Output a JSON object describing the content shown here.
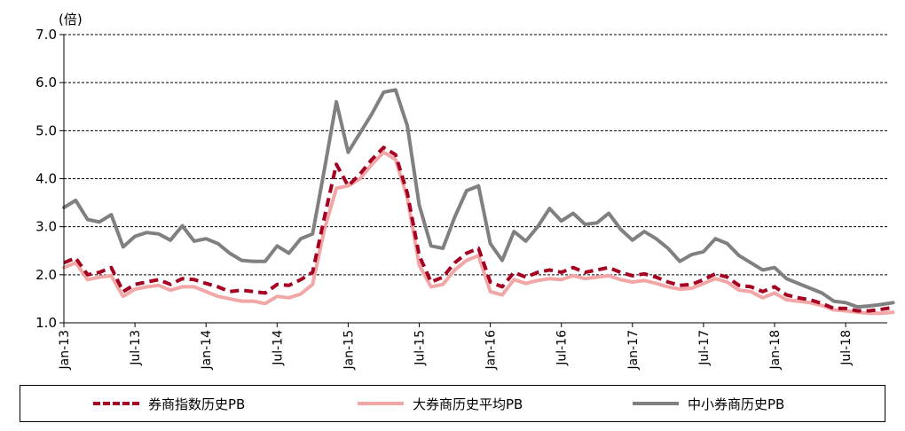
{
  "chart_data": {
    "type": "line",
    "unit_label": "(倍)",
    "ylim": [
      1.0,
      7.0
    ],
    "y_ticks": [
      "1.0",
      "2.0",
      "3.0",
      "4.0",
      "5.0",
      "6.0",
      "7.0"
    ],
    "grid": "horizontal dashed",
    "legend_placement": "bottom",
    "x_tick_labels": [
      "Jan-13",
      "Jul-13",
      "Jan-14",
      "Jul-14",
      "Jan-15",
      "Jul-15",
      "Jan-16",
      "Jul-16",
      "Jan-17",
      "Jul-17",
      "Jan-18",
      "Jul-18"
    ],
    "x_tick_dates": [
      "2013-01",
      "2013-07",
      "2014-01",
      "2014-07",
      "2015-01",
      "2015-07",
      "2016-01",
      "2016-07",
      "2017-01",
      "2017-07",
      "2018-01",
      "2018-07"
    ],
    "x": [
      "2013-01",
      "2013-02",
      "2013-03",
      "2013-04",
      "2013-05",
      "2013-06",
      "2013-07",
      "2013-08",
      "2013-09",
      "2013-10",
      "2013-11",
      "2013-12",
      "2014-01",
      "2014-02",
      "2014-03",
      "2014-04",
      "2014-05",
      "2014-06",
      "2014-07",
      "2014-08",
      "2014-09",
      "2014-10",
      "2014-11",
      "2014-12",
      "2015-01",
      "2015-02",
      "2015-03",
      "2015-04",
      "2015-05",
      "2015-06",
      "2015-07",
      "2015-08",
      "2015-09",
      "2015-10",
      "2015-11",
      "2015-12",
      "2016-01",
      "2016-02",
      "2016-03",
      "2016-04",
      "2016-05",
      "2016-06",
      "2016-07",
      "2016-08",
      "2016-09",
      "2016-10",
      "2016-11",
      "2016-12",
      "2017-01",
      "2017-02",
      "2017-03",
      "2017-04",
      "2017-05",
      "2017-06",
      "2017-07",
      "2017-08",
      "2017-09",
      "2017-10",
      "2017-11",
      "2017-12",
      "2018-01",
      "2018-02",
      "2018-03",
      "2018-04",
      "2018-05",
      "2018-06",
      "2018-07",
      "2018-08",
      "2018-09",
      "2018-10",
      "2018-11"
    ],
    "series": [
      {
        "name": "券商指数历史PB",
        "color": "#a50021",
        "style": "dashed",
        "values": [
          2.25,
          2.35,
          2.0,
          2.05,
          2.15,
          1.65,
          1.8,
          1.85,
          1.9,
          1.8,
          1.92,
          1.9,
          1.82,
          1.75,
          1.65,
          1.68,
          1.65,
          1.62,
          1.8,
          1.78,
          1.9,
          2.05,
          3.2,
          4.3,
          3.85,
          4.1,
          4.4,
          4.65,
          4.5,
          3.7,
          2.4,
          1.85,
          1.95,
          2.25,
          2.45,
          2.55,
          1.85,
          1.75,
          2.05,
          1.95,
          2.05,
          2.1,
          2.05,
          2.15,
          2.05,
          2.1,
          2.15,
          2.05,
          1.98,
          2.02,
          1.95,
          1.85,
          1.78,
          1.8,
          1.9,
          2.02,
          1.95,
          1.78,
          1.75,
          1.65,
          1.75,
          1.58,
          1.52,
          1.48,
          1.4,
          1.3,
          1.3,
          1.25,
          1.25,
          1.28,
          1.32
        ]
      },
      {
        "name": "大券商历史平均PB",
        "color": "#f2a6a6",
        "style": "solid",
        "values": [
          2.15,
          2.25,
          1.9,
          1.95,
          1.98,
          1.55,
          1.7,
          1.75,
          1.78,
          1.68,
          1.75,
          1.75,
          1.65,
          1.55,
          1.5,
          1.45,
          1.45,
          1.4,
          1.55,
          1.52,
          1.6,
          1.8,
          2.95,
          3.8,
          3.85,
          4.0,
          4.3,
          4.55,
          4.4,
          3.6,
          2.2,
          1.75,
          1.8,
          2.1,
          2.3,
          2.4,
          1.65,
          1.58,
          1.9,
          1.82,
          1.88,
          1.92,
          1.9,
          1.98,
          1.92,
          1.95,
          1.98,
          1.9,
          1.85,
          1.88,
          1.82,
          1.75,
          1.7,
          1.72,
          1.82,
          1.92,
          1.85,
          1.68,
          1.65,
          1.52,
          1.62,
          1.48,
          1.45,
          1.42,
          1.36,
          1.27,
          1.25,
          1.22,
          1.2,
          1.2,
          1.22
        ]
      },
      {
        "name": "中小券商历史PB",
        "color": "#808080",
        "style": "solid",
        "values": [
          3.4,
          3.55,
          3.15,
          3.1,
          3.25,
          2.58,
          2.8,
          2.88,
          2.85,
          2.72,
          3.02,
          2.7,
          2.75,
          2.65,
          2.45,
          2.3,
          2.28,
          2.28,
          2.6,
          2.45,
          2.75,
          2.85,
          4.2,
          5.6,
          4.55,
          4.95,
          5.35,
          5.8,
          5.85,
          5.1,
          3.45,
          2.6,
          2.55,
          3.2,
          3.75,
          3.85,
          2.65,
          2.3,
          2.9,
          2.7,
          3.0,
          3.38,
          3.12,
          3.28,
          3.05,
          3.08,
          3.28,
          2.95,
          2.72,
          2.9,
          2.75,
          2.55,
          2.28,
          2.42,
          2.48,
          2.75,
          2.65,
          2.4,
          2.25,
          2.1,
          2.15,
          1.92,
          1.82,
          1.72,
          1.62,
          1.45,
          1.42,
          1.33,
          1.35,
          1.38,
          1.42
        ]
      }
    ]
  }
}
